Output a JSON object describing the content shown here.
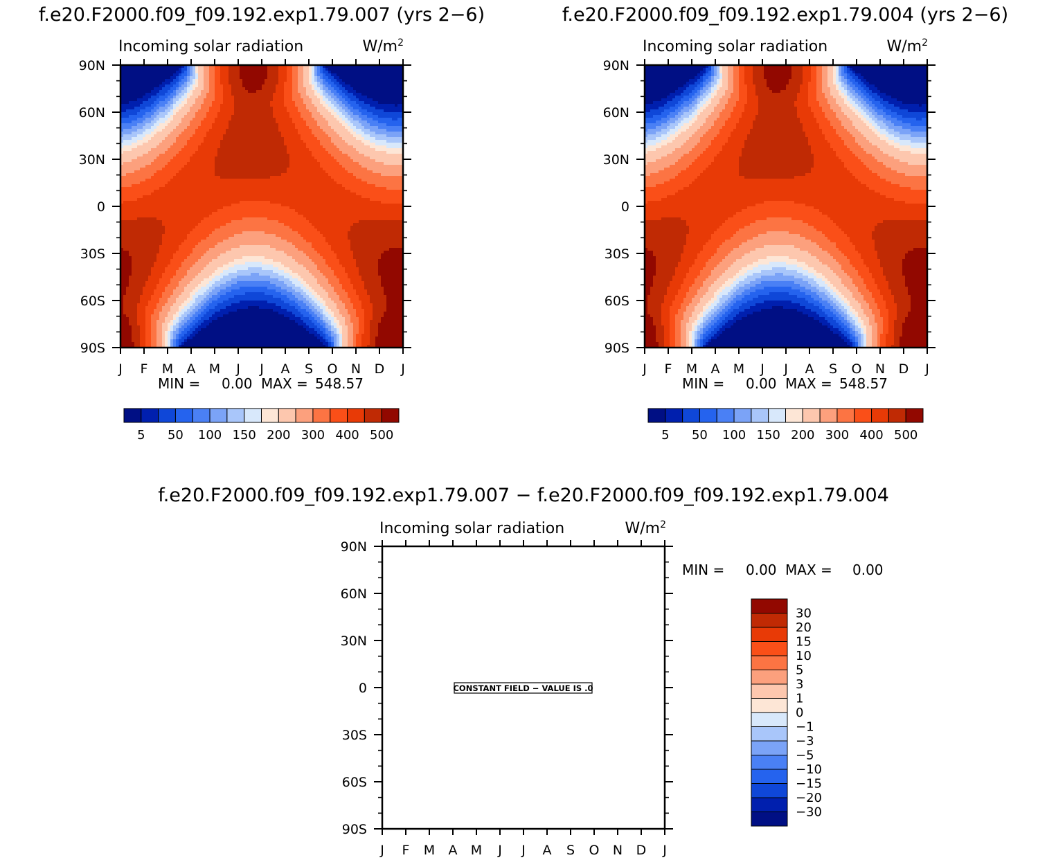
{
  "chart_data": [
    {
      "type": "heatmap",
      "title": "f.e20.F2000.f09_f09.192.exp1.79.007 (yrs 2−6)",
      "subtitle": "Incoming solar radiation",
      "units": "W/m",
      "units_sup": "2",
      "x_ticks": [
        "J",
        "F",
        "M",
        "A",
        "M",
        "J",
        "J",
        "A",
        "S",
        "O",
        "N",
        "D",
        "J"
      ],
      "y_ticks": [
        "90N",
        "60N",
        "30N",
        "0",
        "30S",
        "60S",
        "90S"
      ],
      "stats": {
        "min_label": "MIN =",
        "min": "0.00",
        "max_label": "MAX =",
        "max": "548.57"
      },
      "colorbar": {
        "orientation": "horizontal",
        "labels": [
          {
            "text": "5",
            "boundary": 1
          },
          {
            "text": "50",
            "boundary": 3
          },
          {
            "text": "100",
            "boundary": 5
          },
          {
            "text": "150",
            "boundary": 7
          },
          {
            "text": "200",
            "boundary": 9
          },
          {
            "text": "300",
            "boundary": 11
          },
          {
            "text": "400",
            "boundary": 13
          },
          {
            "text": "500",
            "boundary": 15
          }
        ]
      },
      "field": "insolation",
      "y_range": [
        -90,
        90
      ],
      "x_range": [
        0,
        12
      ]
    },
    {
      "type": "heatmap",
      "title": "f.e20.F2000.f09_f09.192.exp1.79.004 (yrs 2−6)",
      "subtitle": "Incoming solar radiation",
      "units": "W/m",
      "units_sup": "2",
      "x_ticks": [
        "J",
        "F",
        "M",
        "A",
        "M",
        "J",
        "J",
        "A",
        "S",
        "O",
        "N",
        "D",
        "J"
      ],
      "y_ticks": [
        "90N",
        "60N",
        "30N",
        "0",
        "30S",
        "60S",
        "90S"
      ],
      "stats": {
        "min_label": "MIN =",
        "min": "0.00",
        "max_label": "MAX =",
        "max": "548.57"
      },
      "colorbar": {
        "orientation": "horizontal",
        "labels": [
          {
            "text": "5",
            "boundary": 1
          },
          {
            "text": "50",
            "boundary": 3
          },
          {
            "text": "100",
            "boundary": 5
          },
          {
            "text": "150",
            "boundary": 7
          },
          {
            "text": "200",
            "boundary": 9
          },
          {
            "text": "300",
            "boundary": 11
          },
          {
            "text": "400",
            "boundary": 13
          },
          {
            "text": "500",
            "boundary": 15
          }
        ]
      },
      "field": "insolation",
      "y_range": [
        -90,
        90
      ],
      "x_range": [
        0,
        12
      ]
    },
    {
      "type": "heatmap",
      "title": "f.e20.F2000.f09_f09.192.exp1.79.007 − f.e20.F2000.f09_f09.192.exp1.79.004",
      "subtitle": "Incoming solar radiation",
      "units": "W/m",
      "units_sup": "2",
      "x_ticks": [
        "J",
        "F",
        "M",
        "A",
        "M",
        "J",
        "J",
        "A",
        "S",
        "O",
        "N",
        "D",
        "J"
      ],
      "y_ticks": [
        "90N",
        "60N",
        "30N",
        "0",
        "30S",
        "60S",
        "90S"
      ],
      "stats": {
        "min_label": "MIN =",
        "min": "0.00",
        "max_label": "MAX =",
        "max": "0.00"
      },
      "constant_field_label": "CONSTANT FIELD − VALUE IS .0",
      "colorbar": {
        "orientation": "vertical",
        "labels": [
          "30",
          "20",
          "15",
          "10",
          "5",
          "3",
          "1",
          "0",
          "−1",
          "−3",
          "−5",
          "−10",
          "−15",
          "−20",
          "−30"
        ]
      },
      "field": "constant",
      "constant_value": 0,
      "y_range": [
        -90,
        90
      ],
      "x_range": [
        0,
        12
      ]
    }
  ],
  "palette": [
    "#000f84",
    "#001fae",
    "#0f47d8",
    "#2563ee",
    "#4a80f5",
    "#7ba3f7",
    "#a9c6fa",
    "#d8e8fb",
    "#fde6d6",
    "#fdc7ae",
    "#fca07d",
    "#fc7443",
    "#fa4f18",
    "#e83a06",
    "#c02a04",
    "#920800"
  ]
}
